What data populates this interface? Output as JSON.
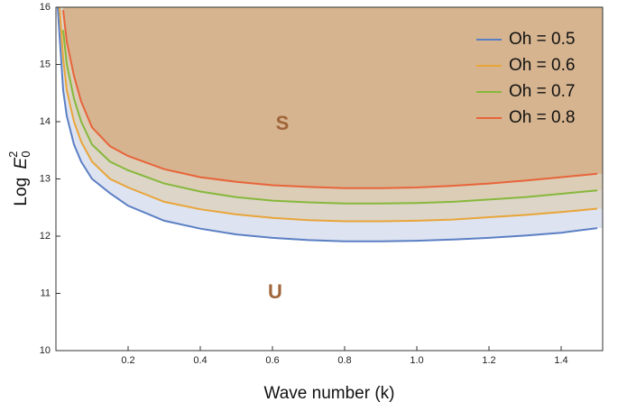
{
  "chart_data": {
    "type": "line",
    "xlabel": "Wave number (k)",
    "ylabel": {
      "text": "Log",
      "symbol": "E",
      "sub": "0",
      "sup": "2"
    },
    "xlim": [
      0,
      1.5
    ],
    "ylim": [
      10,
      16
    ],
    "xticks": [
      0.2,
      0.4,
      0.6,
      0.8,
      {
        "value": 1.0,
        "label": "1.0"
      },
      1.2,
      1.4
    ],
    "yticks": [
      10,
      11,
      12,
      13,
      14,
      15,
      16
    ],
    "legend": "top-right",
    "annotations": [
      "S",
      "U"
    ],
    "x": [
      0.005,
      0.01,
      0.02,
      0.03,
      0.05,
      0.07,
      0.1,
      0.15,
      0.2,
      0.3,
      0.4,
      0.5,
      0.6,
      0.7,
      0.8,
      0.9,
      1.0,
      1.1,
      1.2,
      1.3,
      1.4,
      1.5
    ],
    "series": [
      {
        "name": "Oh = 0.5",
        "color": "#5b7fc4",
        "fill": "#dde3f0",
        "values": [
          16.0,
          15.5,
          14.55,
          14.1,
          13.6,
          13.3,
          13.0,
          12.75,
          12.53,
          12.27,
          12.13,
          12.03,
          11.97,
          11.93,
          11.91,
          11.91,
          11.92,
          11.94,
          11.97,
          12.01,
          12.06,
          12.14
        ]
      },
      {
        "name": "Oh = 0.6",
        "color": "#e9a53a",
        "fill": "#ddd5c8",
        "values": [
          null,
          16.0,
          15.1,
          14.55,
          14.0,
          13.65,
          13.3,
          13.0,
          12.85,
          12.6,
          12.47,
          12.38,
          12.32,
          12.28,
          12.26,
          12.26,
          12.27,
          12.29,
          12.33,
          12.37,
          12.42,
          12.48
        ]
      },
      {
        "name": "Oh = 0.7",
        "color": "#86b83c",
        "fill": "#dccdb6",
        "values": [
          null,
          null,
          15.6,
          15.0,
          14.4,
          14.0,
          13.6,
          13.3,
          13.15,
          12.92,
          12.78,
          12.68,
          12.62,
          12.59,
          12.57,
          12.57,
          12.58,
          12.6,
          12.64,
          12.68,
          12.74,
          12.8
        ]
      },
      {
        "name": "Oh = 0.8",
        "color": "#e8643a",
        "fill": "#d6b48f",
        "values": [
          null,
          null,
          15.95,
          15.4,
          14.8,
          14.35,
          13.9,
          13.57,
          13.4,
          13.17,
          13.03,
          12.95,
          12.89,
          12.86,
          12.84,
          12.84,
          12.85,
          12.88,
          12.92,
          12.97,
          13.03,
          13.09
        ]
      }
    ]
  }
}
